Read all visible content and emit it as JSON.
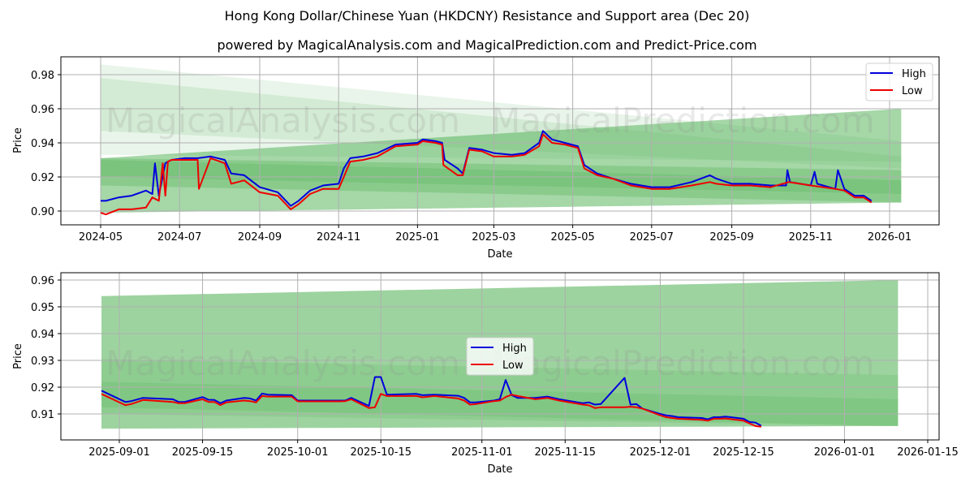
{
  "title": "Hong Kong Dollar/Chinese Yuan (HKDCNY) Resistance and Support area (Dec 20)",
  "subtitle": "powered by MagicalAnalysis.com and MagicalPrediction.com and Predict-Price.com",
  "watermarks": [
    "MagicalAnalysis.com",
    "MagicalPrediction.com"
  ],
  "colors": {
    "high": "#0000dd",
    "low": "#ee0000",
    "band": "#4caf50"
  },
  "chart_data": [
    {
      "type": "line",
      "title": "",
      "xlabel": "Date",
      "ylabel": "Price",
      "ylim": [
        0.892,
        0.991
      ],
      "yticks": [
        "0.90",
        "0.92",
        "0.94",
        "0.96",
        "0.98"
      ],
      "xticks": [
        "2024-05",
        "2024-07",
        "2024-09",
        "2024-11",
        "2025-01",
        "2025-03",
        "2025-05",
        "2025-07",
        "2025-09",
        "2025-11",
        "2026-01"
      ],
      "grid": true,
      "legend": {
        "position": "upper right",
        "entries": [
          "High",
          "Low"
        ]
      },
      "bands": [
        {
          "x": [
            "2024-05-01",
            "2026-01-10"
          ],
          "upper": [
            0.986,
            0.941
          ],
          "lower": [
            0.933,
            0.929
          ],
          "opacity": 0.12
        },
        {
          "x": [
            "2024-05-01",
            "2026-01-10"
          ],
          "upper": [
            0.978,
            0.932
          ],
          "lower": [
            0.947,
            0.925
          ],
          "opacity": 0.14
        },
        {
          "x": [
            "2024-05-01",
            "2026-01-10"
          ],
          "upper": [
            0.931,
            0.96
          ],
          "lower": [
            0.899,
            0.905
          ],
          "opacity": 0.5
        },
        {
          "x": [
            "2024-05-01",
            "2026-01-10"
          ],
          "upper": [
            0.931,
            0.924
          ],
          "lower": [
            0.915,
            0.905
          ],
          "opacity": 0.3
        },
        {
          "x": [
            "2024-05-01",
            "2026-01-10"
          ],
          "upper": [
            0.93,
            0.918
          ],
          "lower": [
            0.92,
            0.91
          ],
          "opacity": 0.25
        }
      ],
      "series": [
        {
          "name": "High",
          "x": [
            "2024-05-01",
            "2024-05-05",
            "2024-05-15",
            "2024-05-25",
            "2024-06-05",
            "2024-06-10",
            "2024-06-12",
            "2024-06-15",
            "2024-06-20",
            "2024-06-22",
            "2024-06-25",
            "2024-07-05",
            "2024-07-15",
            "2024-07-25",
            "2024-08-05",
            "2024-08-10",
            "2024-08-20",
            "2024-09-01",
            "2024-09-15",
            "2024-09-25",
            "2024-10-01",
            "2024-10-10",
            "2024-10-20",
            "2024-11-01",
            "2024-11-05",
            "2024-11-10",
            "2024-11-20",
            "2024-12-01",
            "2024-12-15",
            "2025-01-01",
            "2025-01-05",
            "2025-01-15",
            "2025-01-20",
            "2025-01-22",
            "2025-02-01",
            "2025-02-05",
            "2025-02-10",
            "2025-02-20",
            "2025-03-01",
            "2025-03-15",
            "2025-03-25",
            "2025-04-05",
            "2025-04-08",
            "2025-04-15",
            "2025-04-25",
            "2025-05-05",
            "2025-05-10",
            "2025-05-20",
            "2025-06-01",
            "2025-06-15",
            "2025-07-01",
            "2025-07-15",
            "2025-08-01",
            "2025-08-15",
            "2025-08-20",
            "2025-09-01",
            "2025-09-15",
            "2025-10-01",
            "2025-10-13",
            "2025-10-14",
            "2025-10-16",
            "2025-11-01",
            "2025-11-04",
            "2025-11-06",
            "2025-11-20",
            "2025-11-22",
            "2025-11-27",
            "2025-12-05",
            "2025-12-12",
            "2025-12-18"
          ],
          "values": [
            0.906,
            0.906,
            0.908,
            0.909,
            0.912,
            0.91,
            0.928,
            0.909,
            0.928,
            0.929,
            0.93,
            0.931,
            0.931,
            0.932,
            0.93,
            0.922,
            0.921,
            0.914,
            0.911,
            0.903,
            0.906,
            0.912,
            0.915,
            0.916,
            0.925,
            0.931,
            0.932,
            0.934,
            0.939,
            0.94,
            0.942,
            0.941,
            0.94,
            0.93,
            0.925,
            0.922,
            0.937,
            0.936,
            0.934,
            0.933,
            0.934,
            0.94,
            0.947,
            0.942,
            0.94,
            0.938,
            0.927,
            0.922,
            0.919,
            0.916,
            0.914,
            0.914,
            0.917,
            0.921,
            0.919,
            0.916,
            0.916,
            0.915,
            0.915,
            0.924,
            0.917,
            0.915,
            0.923,
            0.916,
            0.913,
            0.924,
            0.913,
            0.909,
            0.909,
            0.906
          ]
        },
        {
          "name": "Low",
          "x": [
            "2024-05-01",
            "2024-05-05",
            "2024-05-15",
            "2024-05-25",
            "2024-06-05",
            "2024-06-10",
            "2024-06-15",
            "2024-06-18",
            "2024-06-20",
            "2024-06-22",
            "2024-06-25",
            "2024-07-05",
            "2024-07-15",
            "2024-07-16",
            "2024-07-25",
            "2024-08-05",
            "2024-08-10",
            "2024-08-20",
            "2024-09-01",
            "2024-09-15",
            "2024-09-25",
            "2024-10-01",
            "2024-10-10",
            "2024-10-20",
            "2024-11-01",
            "2024-11-05",
            "2024-11-10",
            "2024-11-20",
            "2024-12-01",
            "2024-12-15",
            "2025-01-01",
            "2025-01-05",
            "2025-01-15",
            "2025-01-20",
            "2025-01-21",
            "2025-02-01",
            "2025-02-05",
            "2025-02-10",
            "2025-02-20",
            "2025-03-01",
            "2025-03-15",
            "2025-03-25",
            "2025-04-05",
            "2025-04-08",
            "2025-04-15",
            "2025-04-25",
            "2025-05-05",
            "2025-05-10",
            "2025-05-20",
            "2025-06-01",
            "2025-06-15",
            "2025-07-01",
            "2025-07-15",
            "2025-08-01",
            "2025-08-15",
            "2025-08-20",
            "2025-09-01",
            "2025-09-15",
            "2025-10-01",
            "2025-10-15",
            "2025-11-01",
            "2025-11-20",
            "2025-11-27",
            "2025-12-05",
            "2025-12-12",
            "2025-12-18"
          ],
          "values": [
            0.899,
            0.898,
            0.901,
            0.901,
            0.902,
            0.908,
            0.906,
            0.928,
            0.909,
            0.929,
            0.93,
            0.93,
            0.93,
            0.913,
            0.931,
            0.928,
            0.916,
            0.918,
            0.911,
            0.909,
            0.901,
            0.904,
            0.91,
            0.913,
            0.913,
            0.92,
            0.929,
            0.93,
            0.932,
            0.938,
            0.939,
            0.941,
            0.94,
            0.939,
            0.927,
            0.921,
            0.921,
            0.936,
            0.935,
            0.932,
            0.932,
            0.933,
            0.938,
            0.945,
            0.94,
            0.939,
            0.937,
            0.925,
            0.921,
            0.919,
            0.915,
            0.913,
            0.913,
            0.915,
            0.917,
            0.916,
            0.915,
            0.915,
            0.914,
            0.917,
            0.915,
            0.913,
            0.912,
            0.908,
            0.908,
            0.905
          ]
        }
      ]
    },
    {
      "type": "line",
      "title": "",
      "xlabel": "Date",
      "ylabel": "Price",
      "ylim": [
        0.9022,
        0.9632
      ],
      "yticks": [
        "0.91",
        "0.92",
        "0.93",
        "0.94",
        "0.95",
        "0.96"
      ],
      "xticks": [
        "2025-09-01",
        "2025-09-15",
        "2025-10-01",
        "2025-10-15",
        "2025-11-01",
        "2025-11-15",
        "2025-12-01",
        "2025-12-15",
        "2026-01-01",
        "2026-01-15"
      ],
      "grid": true,
      "legend": {
        "position": "center",
        "entries": [
          "High",
          "Low"
        ]
      },
      "bands": [
        {
          "x": [
            "2025-08-29",
            "2026-01-10"
          ],
          "upper": [
            0.954,
            0.96
          ],
          "lower": [
            0.9045,
            0.9055
          ],
          "opacity": 0.55
        },
        {
          "x": [
            "2025-08-29",
            "2026-01-10"
          ],
          "upper": [
            0.9305,
            0.9245
          ],
          "lower": [
            0.91,
            0.9055
          ],
          "opacity": 0.18
        },
        {
          "x": [
            "2025-08-29",
            "2026-01-10"
          ],
          "upper": [
            0.922,
            0.9155
          ],
          "lower": [
            0.9125,
            0.9055
          ],
          "opacity": 0.2
        }
      ],
      "series": [
        {
          "name": "High",
          "x": [
            "2025-08-29",
            "2025-09-02",
            "2025-09-03",
            "2025-09-05",
            "2025-09-10",
            "2025-09-11",
            "2025-09-12",
            "2025-09-15",
            "2025-09-16",
            "2025-09-17",
            "2025-09-18",
            "2025-09-19",
            "2025-09-22",
            "2025-09-23",
            "2025-09-24",
            "2025-09-25",
            "2025-09-26",
            "2025-09-30",
            "2025-10-01",
            "2025-10-08",
            "2025-10-09",
            "2025-10-10",
            "2025-10-13",
            "2025-10-14",
            "2025-10-15",
            "2025-10-16",
            "2025-10-21",
            "2025-10-22",
            "2025-10-24",
            "2025-10-28",
            "2025-10-29",
            "2025-10-30",
            "2025-10-31",
            "2025-11-03",
            "2025-11-04",
            "2025-11-05",
            "2025-11-06",
            "2025-11-07",
            "2025-11-10",
            "2025-11-12",
            "2025-11-13",
            "2025-11-14",
            "2025-11-18",
            "2025-11-19",
            "2025-11-20",
            "2025-11-21",
            "2025-11-25",
            "2025-11-26",
            "2025-11-27",
            "2025-11-28",
            "2025-12-01",
            "2025-12-02",
            "2025-12-03",
            "2025-12-04",
            "2025-12-08",
            "2025-12-09",
            "2025-12-10",
            "2025-12-11",
            "2025-12-12",
            "2025-12-15",
            "2025-12-16",
            "2025-12-17",
            "2025-12-18"
          ],
          "values": [
            0.9187,
            0.9145,
            0.9148,
            0.916,
            0.9155,
            0.9145,
            0.9145,
            0.9163,
            0.9153,
            0.9152,
            0.914,
            0.915,
            0.916,
            0.9158,
            0.915,
            0.9176,
            0.9172,
            0.917,
            0.915,
            0.915,
            0.915,
            0.916,
            0.913,
            0.9238,
            0.9238,
            0.9172,
            0.9175,
            0.917,
            0.9172,
            0.9168,
            0.916,
            0.9143,
            0.9143,
            0.915,
            0.9155,
            0.9227,
            0.917,
            0.916,
            0.916,
            0.9165,
            0.916,
            0.9155,
            0.914,
            0.9143,
            0.9135,
            0.9137,
            0.9235,
            0.9135,
            0.9137,
            0.912,
            0.91,
            0.9095,
            0.9092,
            0.9088,
            0.9085,
            0.908,
            0.9088,
            0.9088,
            0.909,
            0.9082,
            0.907,
            0.9068,
            0.9056
          ]
        },
        {
          "name": "Low",
          "x": [
            "2025-08-29",
            "2025-09-02",
            "2025-09-03",
            "2025-09-05",
            "2025-09-10",
            "2025-09-11",
            "2025-09-12",
            "2025-09-15",
            "2025-09-16",
            "2025-09-17",
            "2025-09-18",
            "2025-09-19",
            "2025-09-22",
            "2025-09-23",
            "2025-09-24",
            "2025-09-25",
            "2025-09-26",
            "2025-09-30",
            "2025-10-01",
            "2025-10-08",
            "2025-10-09",
            "2025-10-10",
            "2025-10-13",
            "2025-10-14",
            "2025-10-15",
            "2025-10-16",
            "2025-10-21",
            "2025-10-22",
            "2025-10-24",
            "2025-10-28",
            "2025-10-29",
            "2025-10-30",
            "2025-10-31",
            "2025-11-03",
            "2025-11-04",
            "2025-11-05",
            "2025-11-06",
            "2025-11-07",
            "2025-11-10",
            "2025-11-12",
            "2025-11-13",
            "2025-11-14",
            "2025-11-18",
            "2025-11-19",
            "2025-11-20",
            "2025-11-21",
            "2025-11-25",
            "2025-11-26",
            "2025-11-27",
            "2025-11-28",
            "2025-12-01",
            "2025-12-02",
            "2025-12-03",
            "2025-12-04",
            "2025-12-08",
            "2025-12-09",
            "2025-12-10",
            "2025-12-11",
            "2025-12-12",
            "2025-12-15",
            "2025-12-16",
            "2025-12-17",
            "2025-12-18"
          ],
          "values": [
            0.9175,
            0.9133,
            0.9137,
            0.9152,
            0.9145,
            0.914,
            0.914,
            0.9155,
            0.9145,
            0.9145,
            0.9133,
            0.9143,
            0.915,
            0.9148,
            0.9143,
            0.9167,
            0.9165,
            0.9165,
            0.9147,
            0.9147,
            0.9148,
            0.9155,
            0.9122,
            0.9125,
            0.9175,
            0.9167,
            0.9167,
            0.9162,
            0.9167,
            0.9158,
            0.915,
            0.9135,
            0.9137,
            0.9148,
            0.915,
            0.9163,
            0.9172,
            0.9167,
            0.9155,
            0.916,
            0.9155,
            0.915,
            0.9135,
            0.9132,
            0.9122,
            0.9125,
            0.9125,
            0.9127,
            0.9125,
            0.912,
            0.9095,
            0.9088,
            0.9085,
            0.9082,
            0.9078,
            0.9075,
            0.9082,
            0.9082,
            0.9083,
            0.9075,
            0.9065,
            0.9055,
            0.9052
          ]
        }
      ]
    }
  ]
}
